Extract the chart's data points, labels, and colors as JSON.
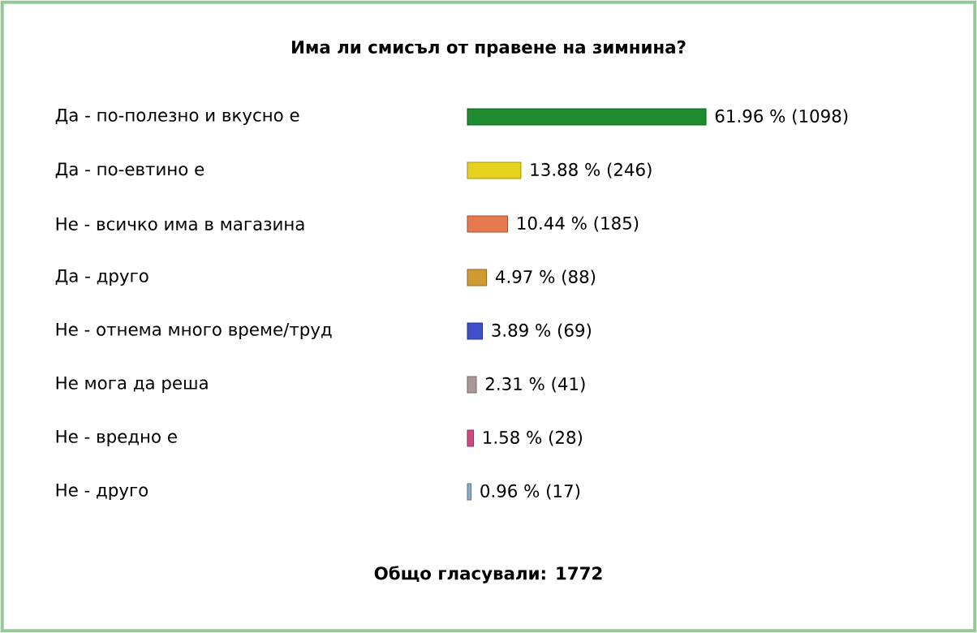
{
  "chart_data": {
    "type": "bar",
    "orientation": "horizontal",
    "title": "Има ли смисъл от правене на зимнина?",
    "categories": [
      "Да - по-полезно и вкусно е",
      "Да - по-евтино е",
      "Не - всичко има в магазина",
      "Да - друго",
      "Не - отнема много време/труд",
      "Не мога да реша",
      "Не - вредно е",
      "Не - друго"
    ],
    "values": [
      61.96,
      13.88,
      10.44,
      4.97,
      3.89,
      2.31,
      1.58,
      0.96
    ],
    "value_labels": [
      "61.96 % (1098)",
      "13.88 % (246)",
      "10.44 % (185)",
      "4.97 % (88)",
      "3.89 % (69)",
      "2.31 % (41)",
      "1.58 % (28)",
      "0.96 % (17)"
    ],
    "colors": [
      "#1e8c2e",
      "#e6d21e",
      "#e8784e",
      "#d09a32",
      "#4050c8",
      "#a89898",
      "#d04a80",
      "#8aaec0"
    ],
    "annotations": [
      "Общо гласували: 1772"
    ]
  }
}
